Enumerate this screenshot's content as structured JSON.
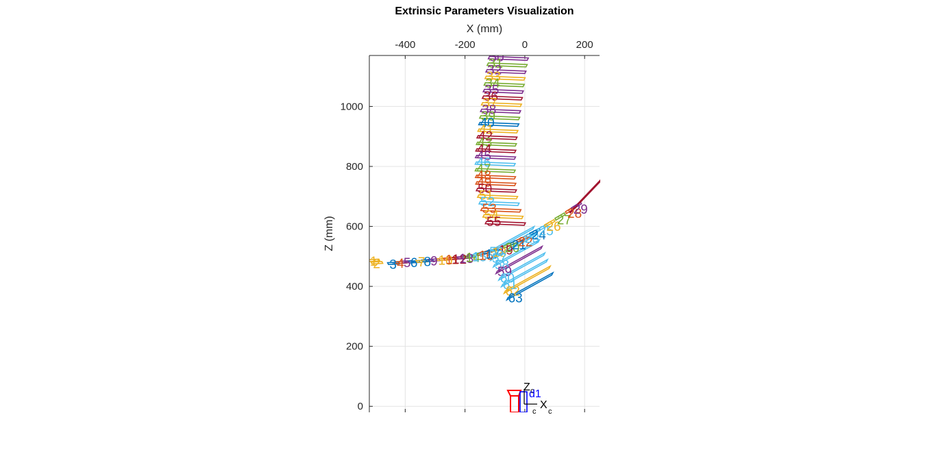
{
  "chart_data": {
    "type": "scatter",
    "title": "Extrinsic Parameters Visualization",
    "xlabel": "X (mm)",
    "ylabel": "Z (mm)",
    "xlim": [
      -520,
      250
    ],
    "ylim": [
      -20,
      1170
    ],
    "x_ticks": [
      -400,
      -200,
      0,
      200
    ],
    "y_ticks": [
      0,
      200,
      400,
      600,
      800,
      1000
    ],
    "x_tick_labels": [
      "-400",
      "-200",
      "0",
      "200"
    ],
    "y_tick_labels": [
      "0",
      "200",
      "400",
      "600",
      "800",
      "1000"
    ],
    "grid": true,
    "x_axis_location": "top",
    "palette": [
      "#0072BD",
      "#D95319",
      "#EDB120",
      "#7E2F8E",
      "#77AC30",
      "#4DBEEE",
      "#A2142F"
    ],
    "camera": {
      "axis_x_label": "X",
      "axis_x_sub": "c",
      "axis_z_label": "Z",
      "axis_z_sub": "c",
      "origin_label": "c",
      "frame_label": "d1",
      "frame_color": "#0000FF",
      "body_color": "#FF0000"
    },
    "patterns": [
      {
        "id": 1,
        "label": "1",
        "x": -520,
        "z": 485,
        "color": "#EDB120"
      },
      {
        "id": 2,
        "label": "2",
        "x": -510,
        "z": 477,
        "color": "#EDB120"
      },
      {
        "id": 3,
        "label": "3",
        "x": -455,
        "z": 475,
        "color": "#0072BD"
      },
      {
        "id": 4,
        "label": "4",
        "x": -430,
        "z": 478,
        "color": "#D95319"
      },
      {
        "id": 5,
        "label": "5",
        "x": -408,
        "z": 480,
        "color": "#7E2F8E"
      },
      {
        "id": 6,
        "label": "6",
        "x": -385,
        "z": 480,
        "color": "#0072BD"
      },
      {
        "id": 7,
        "label": "7",
        "x": -360,
        "z": 482,
        "color": "#EDB120"
      },
      {
        "id": 8,
        "label": "8",
        "x": -340,
        "z": 484,
        "color": "#0072BD"
      },
      {
        "id": 9,
        "label": "9",
        "x": -318,
        "z": 486,
        "color": "#7E2F8E"
      },
      {
        "id": 10,
        "label": "10",
        "x": -292,
        "z": 488,
        "color": "#EDB120"
      },
      {
        "id": 11,
        "label": "11",
        "x": -268,
        "z": 490,
        "color": "#D95319"
      },
      {
        "id": 12,
        "label": "12",
        "x": -245,
        "z": 492,
        "color": "#A2142F"
      },
      {
        "id": 13,
        "label": "13",
        "x": -222,
        "z": 494,
        "color": "#7E2F8E"
      },
      {
        "id": 14,
        "label": "14",
        "x": -200,
        "z": 497,
        "color": "#77AC30"
      },
      {
        "id": 15,
        "label": "15",
        "x": -178,
        "z": 500,
        "color": "#4DBEEE"
      },
      {
        "id": 16,
        "label": "16",
        "x": -156,
        "z": 504,
        "color": "#D95319"
      },
      {
        "id": 17,
        "label": "17",
        "x": -134,
        "z": 509,
        "color": "#0072BD"
      },
      {
        "id": 18,
        "label": "18",
        "x": -112,
        "z": 515,
        "color": "#EDB120"
      },
      {
        "id": 19,
        "label": "19",
        "x": -90,
        "z": 522,
        "color": "#A2142F"
      },
      {
        "id": 20,
        "label": "20",
        "x": -68,
        "z": 530,
        "color": "#77AC30"
      },
      {
        "id": 21,
        "label": "21",
        "x": -46,
        "z": 540,
        "color": "#0072BD"
      },
      {
        "id": 22,
        "label": "22",
        "x": -24,
        "z": 550,
        "color": "#D95319"
      },
      {
        "id": 23,
        "label": "23",
        "x": -2,
        "z": 561,
        "color": "#4DBEEE"
      },
      {
        "id": 24,
        "label": "24",
        "x": 20,
        "z": 573,
        "color": "#0072BD"
      },
      {
        "id": 25,
        "label": "25",
        "x": 45,
        "z": 586,
        "color": "#4DBEEE"
      },
      {
        "id": 26,
        "label": "26",
        "x": 70,
        "z": 601,
        "color": "#EDB120"
      },
      {
        "id": 27,
        "label": "27",
        "x": 105,
        "z": 623,
        "color": "#77AC30"
      },
      {
        "id": 28,
        "label": "28",
        "x": 140,
        "z": 645,
        "color": "#D95319"
      },
      {
        "id": 29,
        "label": "29",
        "x": 160,
        "z": 658,
        "color": "#7E2F8E"
      },
      {
        "id": 30,
        "label": "30",
        "x": -120,
        "z": 1167,
        "color": "#7E2F8E"
      },
      {
        "id": 31,
        "label": "31",
        "x": -124,
        "z": 1145,
        "color": "#77AC30"
      },
      {
        "id": 32,
        "label": "32",
        "x": -128,
        "z": 1123,
        "color": "#7E2F8E"
      },
      {
        "id": 33,
        "label": "33",
        "x": -131,
        "z": 1101,
        "color": "#EDB120"
      },
      {
        "id": 34,
        "label": "34",
        "x": -134,
        "z": 1079,
        "color": "#77AC30"
      },
      {
        "id": 35,
        "label": "35",
        "x": -137,
        "z": 1057,
        "color": "#7E2F8E"
      },
      {
        "id": 36,
        "label": "36",
        "x": -140,
        "z": 1035,
        "color": "#A2142F"
      },
      {
        "id": 37,
        "label": "37",
        "x": -143,
        "z": 1013,
        "color": "#EDB120"
      },
      {
        "id": 38,
        "label": "38",
        "x": -146,
        "z": 991,
        "color": "#7E2F8E"
      },
      {
        "id": 39,
        "label": "39",
        "x": -149,
        "z": 969,
        "color": "#77AC30"
      },
      {
        "id": 40,
        "label": "40",
        "x": -152,
        "z": 947,
        "color": "#0072BD"
      },
      {
        "id": 41,
        "label": "41",
        "x": -155,
        "z": 925,
        "color": "#EDB120"
      },
      {
        "id": 42,
        "label": "42",
        "x": -158,
        "z": 903,
        "color": "#A2142F"
      },
      {
        "id": 43,
        "label": "43",
        "x": -160,
        "z": 881,
        "color": "#77AC30"
      },
      {
        "id": 44,
        "label": "44",
        "x": -162,
        "z": 859,
        "color": "#A2142F"
      },
      {
        "id": 45,
        "label": "45",
        "x": -163,
        "z": 837,
        "color": "#7E2F8E"
      },
      {
        "id": 46,
        "label": "46",
        "x": -164,
        "z": 815,
        "color": "#4DBEEE"
      },
      {
        "id": 47,
        "label": "47",
        "x": -164,
        "z": 793,
        "color": "#77AC30"
      },
      {
        "id": 48,
        "label": "48",
        "x": -163,
        "z": 771,
        "color": "#D95319"
      },
      {
        "id": 49,
        "label": "49",
        "x": -162,
        "z": 749,
        "color": "#D95319"
      },
      {
        "id": 50,
        "label": "50",
        "x": -160,
        "z": 727,
        "color": "#A2142F"
      },
      {
        "id": 51,
        "label": "51",
        "x": -156,
        "z": 705,
        "color": "#EDB120"
      },
      {
        "id": 52,
        "label": "52",
        "x": -151,
        "z": 683,
        "color": "#4DBEEE"
      },
      {
        "id": 53,
        "label": "53",
        "x": -145,
        "z": 661,
        "color": "#D95319"
      },
      {
        "id": 54,
        "label": "54",
        "x": -138,
        "z": 639,
        "color": "#EDB120"
      },
      {
        "id": 55,
        "label": "55",
        "x": -130,
        "z": 617,
        "color": "#A2142F"
      },
      {
        "id": 56,
        "label": "56",
        "x": -121,
        "z": 517,
        "color": "#4DBEEE"
      },
      {
        "id": 57,
        "label": "57",
        "x": -112,
        "z": 495,
        "color": "#4DBEEE"
      },
      {
        "id": 58,
        "label": "58",
        "x": -103,
        "z": 473,
        "color": "#4DBEEE"
      },
      {
        "id": 59,
        "label": "59",
        "x": -94,
        "z": 451,
        "color": "#7E2F8E"
      },
      {
        "id": 60,
        "label": "60",
        "x": -85,
        "z": 429,
        "color": "#4DBEEE"
      },
      {
        "id": 61,
        "label": "61",
        "x": -76,
        "z": 407,
        "color": "#4DBEEE"
      },
      {
        "id": 62,
        "label": "62",
        "x": -67,
        "z": 385,
        "color": "#EDB120"
      },
      {
        "id": 63,
        "label": "63",
        "x": -58,
        "z": 363,
        "color": "#0072BD"
      }
    ]
  }
}
